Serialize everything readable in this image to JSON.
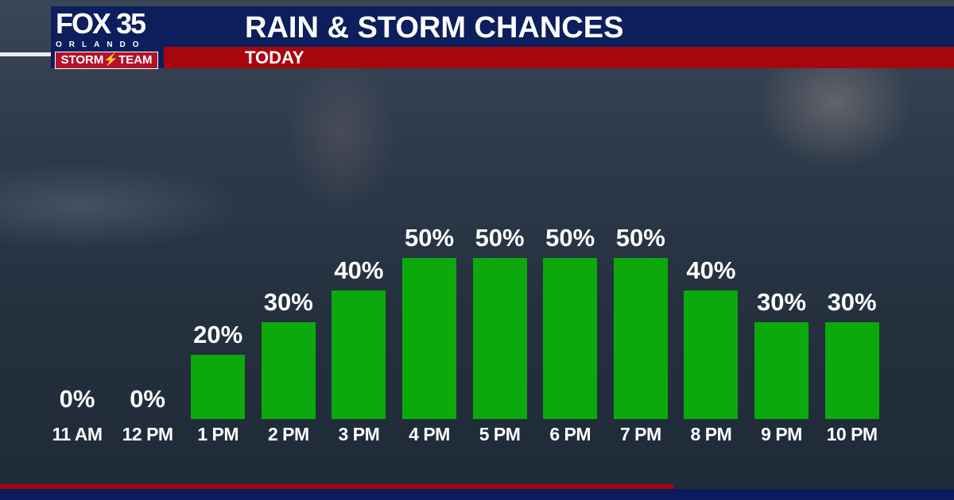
{
  "header": {
    "logo": {
      "brand": "FOX 35",
      "city": "ORLANDO",
      "team": "STORM⚡TEAM"
    },
    "title": "RAIN & STORM CHANCES",
    "subtitle": "TODAY"
  },
  "colors": {
    "bar": "#0ba90b",
    "navy": "#0c1e5c",
    "red": "#a8060f"
  },
  "chart_data": {
    "type": "bar",
    "title": "RAIN & STORM CHANCES",
    "subtitle": "TODAY",
    "categories": [
      "11 AM",
      "12 PM",
      "1 PM",
      "2 PM",
      "3 PM",
      "4 PM",
      "5 PM",
      "6 PM",
      "7 PM",
      "8 PM",
      "9 PM",
      "10 PM"
    ],
    "values": [
      0,
      0,
      20,
      30,
      40,
      50,
      50,
      50,
      50,
      40,
      30,
      30
    ],
    "labels": [
      "0%",
      "0%",
      "20%",
      "30%",
      "40%",
      "50%",
      "50%",
      "50%",
      "50%",
      "40%",
      "30%",
      "30%"
    ],
    "unit": "%",
    "ylim": [
      0,
      50
    ],
    "grid": false
  }
}
